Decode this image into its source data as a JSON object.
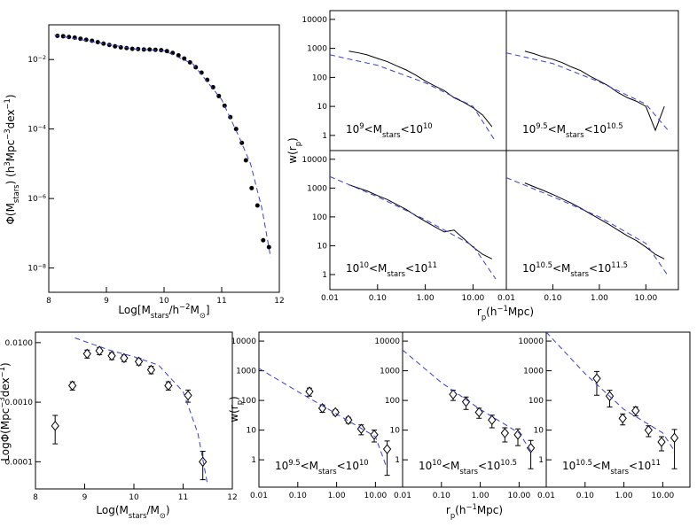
{
  "chart_data": [
    {
      "type": "scatter",
      "xscale": "linear",
      "yscale": "log",
      "xlim": [
        8,
        12
      ],
      "ylim": [
        2e-09,
        0.1
      ],
      "xticks": [
        8,
        9,
        10,
        11,
        12
      ],
      "yticks": [
        {
          "value": 1e-08,
          "label": [
            "10",
            "−8"
          ]
        },
        {
          "value": 1e-06,
          "label": [
            "10",
            "−6"
          ]
        },
        {
          "value": 0.0001,
          "label": [
            "10",
            "−4"
          ]
        },
        {
          "value": 0.01,
          "label": [
            "10",
            "−2"
          ]
        }
      ],
      "xlabel": [
        "Log[M",
        "stars",
        "/h",
        "−2",
        "M",
        "⊙",
        "]"
      ],
      "ylabel": [
        "Φ(M",
        "stars",
        ")  (h",
        "3",
        "Mpc",
        "−3",
        "dex",
        "−1",
        ")"
      ],
      "series": [
        {
          "color": "#000000",
          "marker": "circle",
          "x": [
            8.15,
            8.25,
            8.35,
            8.45,
            8.55,
            8.65,
            8.75,
            8.85,
            8.95,
            9.05,
            9.15,
            9.25,
            9.35,
            9.45,
            9.55,
            9.65,
            9.75,
            9.85,
            9.95,
            10.05,
            10.15,
            10.25,
            10.35,
            10.45,
            10.55,
            10.65,
            10.75,
            10.85,
            10.95,
            11.05,
            11.15,
            11.25,
            11.35,
            11.42,
            11.52,
            11.62,
            11.72,
            11.82
          ],
          "values": [
            0.0479,
            0.0468,
            0.0447,
            0.0427,
            0.0398,
            0.0372,
            0.0347,
            0.0316,
            0.0288,
            0.0263,
            0.024,
            0.0224,
            0.0214,
            0.0204,
            0.02,
            0.0195,
            0.0195,
            0.0191,
            0.0186,
            0.0174,
            0.0155,
            0.0132,
            0.0107,
            0.0083,
            0.006,
            0.0042,
            0.0026,
            0.0016,
            0.00089,
            0.00047,
            0.00022,
            0.0001,
            4e-05,
            1.26e-05,
            2e-06,
            6.3e-07,
            6.3e-08,
            4e-08
          ]
        },
        {
          "color": "#3b3bd6",
          "dash": true,
          "x": [
            8.1,
            9.0,
            9.5,
            10.0,
            10.5,
            11.0,
            11.3,
            11.5,
            11.7,
            11.85
          ],
          "values": [
            0.05,
            0.028,
            0.02,
            0.018,
            0.0075,
            0.0007,
            6e-05,
            1e-05,
            5e-07,
            2e-08
          ]
        }
      ]
    },
    {
      "type": "scatter",
      "xscale": "log",
      "yscale": "log",
      "xlim": [
        0.01,
        50
      ],
      "ylim": [
        0.3,
        20000
      ],
      "yticks": [
        1,
        10,
        100,
        1000,
        10000
      ],
      "ylabel": [
        "w(r",
        "p",
        ")"
      ],
      "annotation": [
        "10",
        "9",
        "<M",
        "stars",
        "<10",
        "10"
      ],
      "series": [
        {
          "color": "#000000",
          "marker": "line",
          "x": [
            0.025,
            0.04,
            0.06,
            0.1,
            0.16,
            0.25,
            0.4,
            0.63,
            1,
            1.6,
            2.5,
            4,
            6.3,
            10,
            16,
            25
          ],
          "values": [
            800,
            700,
            600,
            450,
            350,
            250,
            180,
            120,
            75,
            50,
            35,
            20,
            14,
            9,
            5,
            2
          ]
        },
        {
          "color": "#3b3bd6",
          "dash": true,
          "x": [
            0.01,
            0.1,
            1,
            10,
            30
          ],
          "values": [
            600,
            260,
            65,
            10,
            0.6
          ]
        }
      ]
    },
    {
      "type": "scatter",
      "xscale": "log",
      "yscale": "log",
      "xlim": [
        0.01,
        50
      ],
      "ylim": [
        0.3,
        20000
      ],
      "annotation": [
        "10",
        "9.5",
        "<M",
        "stars",
        "<10",
        "10.5"
      ],
      "series": [
        {
          "color": "#000000",
          "marker": "line",
          "x": [
            0.025,
            0.04,
            0.06,
            0.1,
            0.16,
            0.25,
            0.4,
            0.63,
            1,
            1.6,
            2.5,
            4,
            6.3,
            10,
            16,
            25
          ],
          "values": [
            800,
            650,
            520,
            420,
            320,
            230,
            170,
            110,
            75,
            50,
            30,
            20,
            15,
            10,
            1.5,
            10
          ]
        },
        {
          "color": "#3b3bd6",
          "dash": true,
          "x": [
            0.01,
            0.1,
            1,
            10,
            30
          ],
          "values": [
            700,
            300,
            70,
            12,
            1.5
          ]
        }
      ]
    },
    {
      "type": "scatter",
      "xscale": "log",
      "yscale": "log",
      "xlim": [
        0.01,
        50
      ],
      "ylim": [
        0.3,
        20000
      ],
      "xticks": [
        0.01,
        {
          "value": 0.1,
          "label": "0.10"
        },
        {
          "value": 1,
          "label": "1.00"
        },
        {
          "value": 10,
          "label": "10.00"
        }
      ],
      "yticks": [
        1,
        10,
        100,
        1000,
        10000
      ],
      "xlabel": [
        "r",
        "p",
        "(h",
        "−1",
        "Mpc)"
      ],
      "annotation": [
        "10",
        "10",
        "<M",
        "stars",
        "<10",
        "11"
      ],
      "series": [
        {
          "color": "#000000",
          "marker": "line",
          "x": [
            0.025,
            0.04,
            0.06,
            0.1,
            0.16,
            0.25,
            0.4,
            0.63,
            1,
            1.6,
            2.5,
            4,
            6.3,
            10,
            16,
            25
          ],
          "values": [
            1300,
            1000,
            800,
            550,
            400,
            270,
            180,
            110,
            70,
            45,
            30,
            35,
            18,
            9,
            5,
            3.5
          ]
        },
        {
          "color": "#3b3bd6",
          "dash": true,
          "x": [
            0.01,
            0.1,
            1,
            10,
            30
          ],
          "values": [
            2500,
            500,
            80,
            10,
            0.7
          ]
        }
      ]
    },
    {
      "type": "scatter",
      "xscale": "log",
      "yscale": "log",
      "xlim": [
        0.01,
        50
      ],
      "ylim": [
        0.3,
        20000
      ],
      "xticks": [
        0.01,
        {
          "value": 0.1,
          "label": "0.10"
        },
        {
          "value": 1,
          "label": "1.00"
        },
        {
          "value": 10,
          "label": "10.00"
        }
      ],
      "annotation": [
        "10",
        "10.5",
        "<M",
        "stars",
        "<10",
        "11.5"
      ],
      "series": [
        {
          "color": "#000000",
          "marker": "line",
          "x": [
            0.025,
            0.04,
            0.06,
            0.1,
            0.16,
            0.25,
            0.4,
            0.63,
            1,
            1.6,
            2.5,
            4,
            6.3,
            10,
            16,
            25
          ],
          "values": [
            1500,
            1100,
            850,
            600,
            420,
            300,
            200,
            130,
            85,
            55,
            35,
            22,
            15,
            9,
            5,
            3.5
          ]
        },
        {
          "color": "#3b3bd6",
          "dash": true,
          "x": [
            0.01,
            0.1,
            1,
            10,
            30
          ],
          "values": [
            2300,
            500,
            100,
            12,
            0.9
          ]
        }
      ]
    },
    {
      "type": "scatter",
      "xscale": "linear",
      "yscale": "log",
      "xlim": [
        8,
        12
      ],
      "ylim": [
        3.5e-05,
        0.015
      ],
      "xticks": [
        8,
        9,
        10,
        11,
        12
      ],
      "yticks": [
        0.0001,
        {
          "value": 0.001,
          "label": "0.0010"
        },
        {
          "value": 0.01,
          "label": "0.0100"
        }
      ],
      "xlabel": [
        "Log(M",
        "stars",
        "/M",
        "⊙",
        ")"
      ],
      "ylabel": [
        "LogΦ(Mpc",
        "−3",
        "dex",
        "−1",
        ")"
      ],
      "series": [
        {
          "color": "#000000",
          "marker": "diamond",
          "x": [
            8.4,
            8.75,
            9.05,
            9.3,
            9.55,
            9.8,
            10.1,
            10.35,
            10.7,
            11.1,
            11.4
          ],
          "values": [
            0.0004,
            0.0019,
            0.0065,
            0.0073,
            0.006,
            0.0055,
            0.0048,
            0.0035,
            0.0019,
            0.0013,
            0.0001
          ],
          "errors": [
            0.0002,
            0.0003,
            0.001,
            0.001,
            0.0008,
            0.0007,
            0.0006,
            0.0005,
            0.0003,
            0.0003,
            5e-05
          ]
        },
        {
          "color": "#3b3bd6",
          "dash": true,
          "x": [
            8.8,
            9.5,
            10,
            10.5,
            11,
            11.3,
            11.5
          ],
          "values": [
            0.012,
            0.0075,
            0.0058,
            0.0042,
            0.0015,
            0.0003,
            4e-05
          ]
        }
      ]
    },
    {
      "type": "scatter",
      "xscale": "log",
      "yscale": "log",
      "xlim": [
        0.01,
        50
      ],
      "ylim": [
        0.12,
        20000
      ],
      "xticks": [
        0.01,
        {
          "value": 0.1,
          "label": "0.10"
        },
        {
          "value": 1,
          "label": "1.00"
        },
        {
          "value": 10,
          "label": "10.00"
        }
      ],
      "yticks": [
        1,
        10,
        100,
        1000,
        10000
      ],
      "ylabel": [
        "w(r",
        "p",
        ")"
      ],
      "annotation": [
        "10",
        "9.5",
        "<M",
        "stars",
        "<10",
        "10"
      ],
      "series": [
        {
          "color": "#000000",
          "marker": "diamond",
          "x": [
            0.2,
            0.43,
            0.93,
            2,
            4.3,
            9.3,
            20
          ],
          "values": [
            200,
            55,
            40,
            22,
            11,
            7,
            2.3
          ],
          "errors": [
            60,
            15,
            8,
            5,
            4,
            3,
            2
          ]
        },
        {
          "color": "#3b3bd6",
          "dash": true,
          "x": [
            0.01,
            0.1,
            1,
            10,
            20
          ],
          "values": [
            1200,
            200,
            35,
            6,
            0.5
          ]
        }
      ]
    },
    {
      "type": "scatter",
      "xscale": "log",
      "yscale": "log",
      "xlim": [
        0.01,
        50
      ],
      "ylim": [
        0.12,
        20000
      ],
      "xticks": [
        0.01,
        {
          "value": 0.1,
          "label": "0.10"
        },
        {
          "value": 1,
          "label": "1.00"
        },
        {
          "value": 10,
          "label": "10.00"
        }
      ],
      "yticks": [
        1,
        10,
        100,
        1000,
        10000
      ],
      "xlabel": [
        "r",
        "p",
        "(h",
        "−1",
        "Mpc)"
      ],
      "annotation": [
        "10",
        "10",
        "<M",
        "stars",
        "<10",
        "10.5"
      ],
      "series": [
        {
          "color": "#000000",
          "marker": "diamond",
          "x": [
            0.2,
            0.43,
            0.93,
            2,
            4.3,
            9.3,
            20
          ],
          "values": [
            160,
            90,
            40,
            22,
            8,
            7,
            2.5
          ],
          "errors": [
            60,
            40,
            15,
            10,
            4,
            4,
            2
          ]
        },
        {
          "color": "#3b3bd6",
          "dash": true,
          "x": [
            0.01,
            0.1,
            1,
            10,
            20
          ],
          "values": [
            5000,
            400,
            50,
            8,
            2
          ]
        }
      ]
    },
    {
      "type": "scatter",
      "xscale": "log",
      "yscale": "log",
      "xlim": [
        0.01,
        50
      ],
      "ylim": [
        0.12,
        20000
      ],
      "xticks": [
        0.01,
        {
          "value": 0.1,
          "label": "0.10"
        },
        {
          "value": 1,
          "label": "1.00"
        },
        {
          "value": 10,
          "label": "10.00"
        }
      ],
      "yticks": [
        1,
        10,
        100,
        1000,
        10000
      ],
      "annotation": [
        "10",
        "10.5",
        "<M",
        "stars",
        "<10",
        "11"
      ],
      "series": [
        {
          "color": "#000000",
          "marker": "diamond",
          "x": [
            0.2,
            0.43,
            0.93,
            2,
            4.3,
            9.3,
            20
          ],
          "values": [
            550,
            140,
            25,
            45,
            10,
            4,
            5.5
          ],
          "errors": [
            400,
            80,
            10,
            15,
            4,
            2,
            5
          ]
        },
        {
          "color": "#3b3bd6",
          "dash": true,
          "x": [
            0.01,
            0.1,
            1,
            10,
            20
          ],
          "values": [
            20000,
            800,
            50,
            8,
            2
          ]
        }
      ]
    }
  ]
}
